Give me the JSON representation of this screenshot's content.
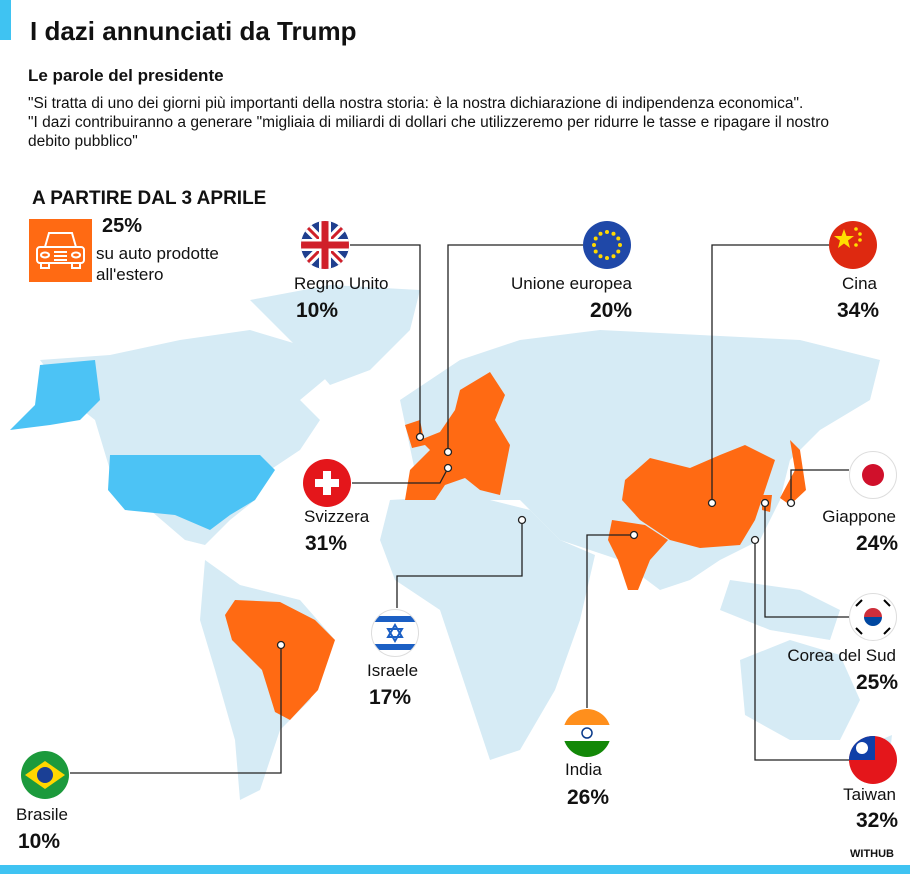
{
  "title": "I dazi annunciati da Trump",
  "subtitle": "Le parole del presidente",
  "quotes": [
    "\"Si tratta di uno dei giorni più importanti della nostra storia: è la nostra dichiarazione di indipendenza economica\".",
    "\"I dazi contribuiranno a generare \"migliaia di miliardi di dollari che utilizzeremo per ridurre le tasse e ripagare il nostro debito pubblico\""
  ],
  "since": "A PARTIRE DAL 3 APRILE",
  "cars": {
    "icon": "car-icon",
    "pct": "25%",
    "text": "su auto prodotte all'estero"
  },
  "countries": {
    "uk": {
      "name": "Regno Unito",
      "pct": "10%"
    },
    "eu": {
      "name": "Unione europea",
      "pct": "20%"
    },
    "cn": {
      "name": "Cina",
      "pct": "34%"
    },
    "ch": {
      "name": "Svizzera",
      "pct": "31%"
    },
    "jp": {
      "name": "Giappone",
      "pct": "24%"
    },
    "il": {
      "name": "Israele",
      "pct": "17%"
    },
    "in": {
      "name": "India",
      "pct": "26%"
    },
    "kr": {
      "name": "Corea del Sud",
      "pct": "25%"
    },
    "tw": {
      "name": "Taiwan",
      "pct": "32%"
    },
    "br": {
      "name": "Brasile",
      "pct": "10%"
    }
  },
  "brand": "WITHUB",
  "colors": {
    "accent": "#ff6a13",
    "usa": "#4cc3f5",
    "land": "#d6ebf5",
    "bar": "#3fc3f2"
  }
}
